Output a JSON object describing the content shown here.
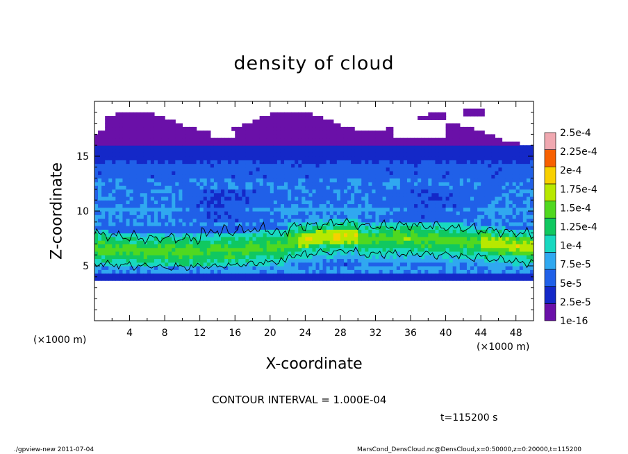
{
  "chart_data": {
    "type": "heatmap",
    "title": "density of cloud",
    "xlabel": "X-coordinate",
    "ylabel": "Z-coordinate",
    "x_unit": "(×1000 m)",
    "z_unit": "(×1000 m)",
    "xlim": [
      0,
      50
    ],
    "ylim": [
      0,
      20
    ],
    "x_ticks": [
      "4",
      "8",
      "12",
      "16",
      "20",
      "24",
      "28",
      "32",
      "36",
      "40",
      "44",
      "48"
    ],
    "y_ticks": [
      "5",
      "10",
      "15"
    ],
    "colorbar": {
      "labels": [
        "1e-16",
        "2.5e-5",
        "5e-5",
        "7.5e-5",
        "1e-4",
        "1.25e-4",
        "1.5e-4",
        "1.75e-4",
        "2e-4",
        "2.25e-4",
        "2.5e-4"
      ],
      "colors": [
        "#6a10a8",
        "#1428c8",
        "#2060e8",
        "#30a8f0",
        "#18d8c0",
        "#10c860",
        "#50d820",
        "#b8e800",
        "#f8d000",
        "#f86000",
        "#f0a8b0"
      ]
    },
    "contour_interval": "CONTOUR INTERVAL = 1.000E-04",
    "time": "t=115200 s",
    "structure": {
      "bottom_edge_km": 3.8,
      "top_edge_km": 16,
      "dense_layer_km": [
        5,
        8.5
      ],
      "upper_patches_km": [
        16,
        18.8
      ]
    }
  },
  "footer": {
    "left": "./gpview-new  2011-07-04",
    "right": "MarsCond_DensCloud.nc@DensCloud,x=0:50000,z=0:20000,t=115200"
  }
}
